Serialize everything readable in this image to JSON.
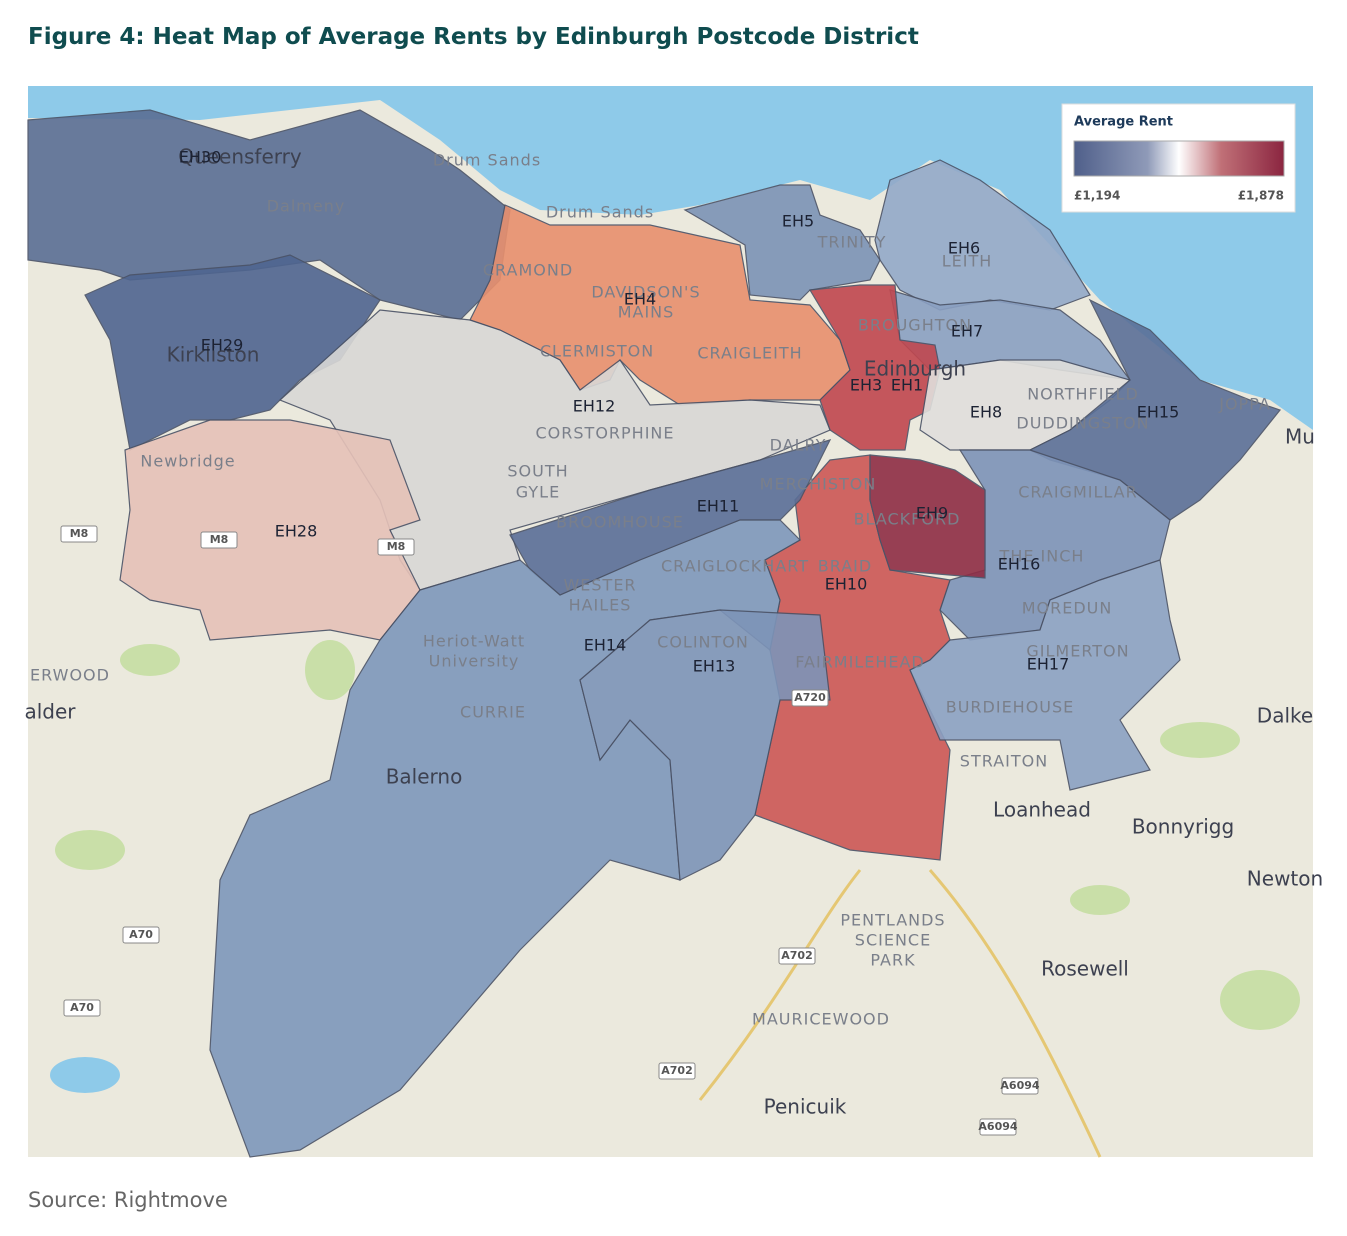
{
  "header": {
    "title": "Figure 4: Heat Map of Average Rents by Edinburgh Postcode District"
  },
  "legend": {
    "title": "Average Rent",
    "min_label": "£1,194",
    "max_label": "£1,878"
  },
  "districts": [
    "EH30",
    "EH29",
    "EH4",
    "EH12",
    "EH28",
    "EH5",
    "EH6",
    "EH7",
    "EH3",
    "EH1",
    "EH8",
    "EH15",
    "EH11",
    "EH9",
    "EH16",
    "EH10",
    "EH14",
    "EH13",
    "EH17"
  ],
  "places": [
    "Queensferry",
    "Drum Sands",
    "Drum Sands",
    "Dalmeny",
    "Kirkliston",
    "Newbridge",
    "CRAMOND",
    "DAVIDSON'S",
    "MAINS",
    "CLERMISTON",
    "CRAIGLEITH",
    "TRINITY",
    "LEITH",
    "BROUGHTON",
    "Edinburgh",
    "NORTHFIELD",
    "DUDDINGSTON",
    "JOPPA",
    "Mu",
    "CORSTORPHINE",
    "SOUTH",
    "GYLE",
    "DALRY",
    "MERCHISTON",
    "BROOMHOUSE",
    "BLACKFORD",
    "CRAIGMILLAR",
    "THE INCH",
    "CRAIGLOCKHART",
    "BRAID",
    "WESTER",
    "HAILES",
    "MOREDUN",
    "GILMERTON",
    "COLINTON",
    "FAIRMILEHEAD",
    "Heriot-Watt",
    "University",
    "CURRIE",
    "BURDIEHOUSE",
    "STRAITON",
    "Loanhead",
    "Bonnyrigg",
    "Dalke",
    "Newton",
    "Balerno",
    "ERWOOD",
    "alder",
    "PENTLANDS",
    "SCIENCE",
    "PARK",
    "Rosewell",
    "MAURICEWOOD",
    "Penicuik"
  ],
  "roads": [
    "M8",
    "M8",
    "M8",
    "A70",
    "A70",
    "A702",
    "A702",
    "A720",
    "A6094",
    "A6094"
  ],
  "source": "Source: Rightmove"
}
